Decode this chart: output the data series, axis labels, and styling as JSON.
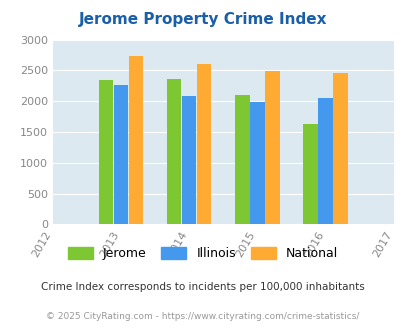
{
  "title": "Jerome Property Crime Index",
  "years": [
    2012,
    2013,
    2014,
    2015,
    2016,
    2017
  ],
  "years_with_data": [
    2013,
    2014,
    2015,
    2016
  ],
  "categories": [
    "Jerome",
    "Illinois",
    "National"
  ],
  "values": {
    "2013": [
      2350,
      2270,
      2740
    ],
    "2014": [
      2360,
      2085,
      2600
    ],
    "2015": [
      2100,
      1990,
      2490
    ],
    "2016": [
      1630,
      2050,
      2460
    ]
  },
  "bar_colors": [
    "#7dc832",
    "#4499ee",
    "#ffaa33"
  ],
  "ylim": [
    0,
    3000
  ],
  "yticks": [
    0,
    500,
    1000,
    1500,
    2000,
    2500,
    3000
  ],
  "xlim": [
    2012,
    2017
  ],
  "bg_color": "#dce9f0",
  "title_color": "#1a5fa8",
  "footer_text": "Crime Index corresponds to incidents per 100,000 inhabitants",
  "copyright_text": "© 2025 CityRating.com - https://www.cityrating.com/crime-statistics/",
  "legend_labels": [
    "Jerome",
    "Illinois",
    "National"
  ],
  "bar_width": 0.22
}
